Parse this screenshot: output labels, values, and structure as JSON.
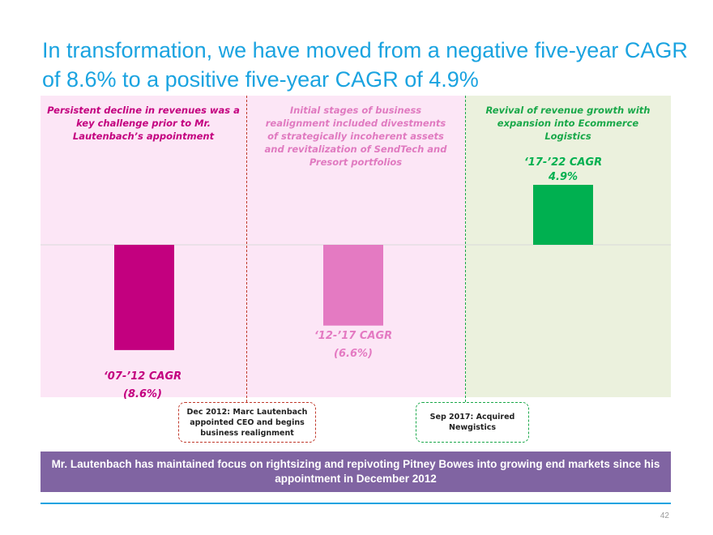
{
  "title": "In transformation, we have moved from a negative five-year CAGR of 8.6% to a positive five-year CAGR of 4.9%",
  "panels": [
    {
      "text": "Persistent decline in revenues was a key challenge prior to Mr. Lautenbach’s appointment"
    },
    {
      "text": "Initial stages of business realignment included divestments of strategically incoherent assets and revitalization of SendTech and Presort portfolios"
    },
    {
      "text": "Revival of revenue growth with expansion into Ecommerce Logistics"
    }
  ],
  "notes": {
    "dec2012": "Dec 2012: Marc Lautenbach appointed CEO and begins business realignment",
    "sep2017": "Sep 2017: Acquired Newgistics"
  },
  "banner": "Mr. Lautenbach has maintained focus on rightsizing and repivoting Pitney Bowes into growing end markets since his appointment in December 2012",
  "page_number": "42",
  "colors": {
    "title": "#1aa3e0",
    "bar1": "#c3007f",
    "bar2": "#e47ac2",
    "bar3": "#00b050",
    "banner": "#8064a2"
  },
  "chart_data": {
    "type": "bar",
    "categories": [
      "‘07-’12 CAGR",
      "‘12-’17 CAGR",
      "‘17-’22 CAGR"
    ],
    "values": [
      -8.6,
      -6.6,
      4.9
    ],
    "value_labels": [
      "(8.6%)",
      "(6.6%)",
      "4.9%"
    ],
    "ylim": [
      -9,
      5
    ],
    "grid": false
  }
}
